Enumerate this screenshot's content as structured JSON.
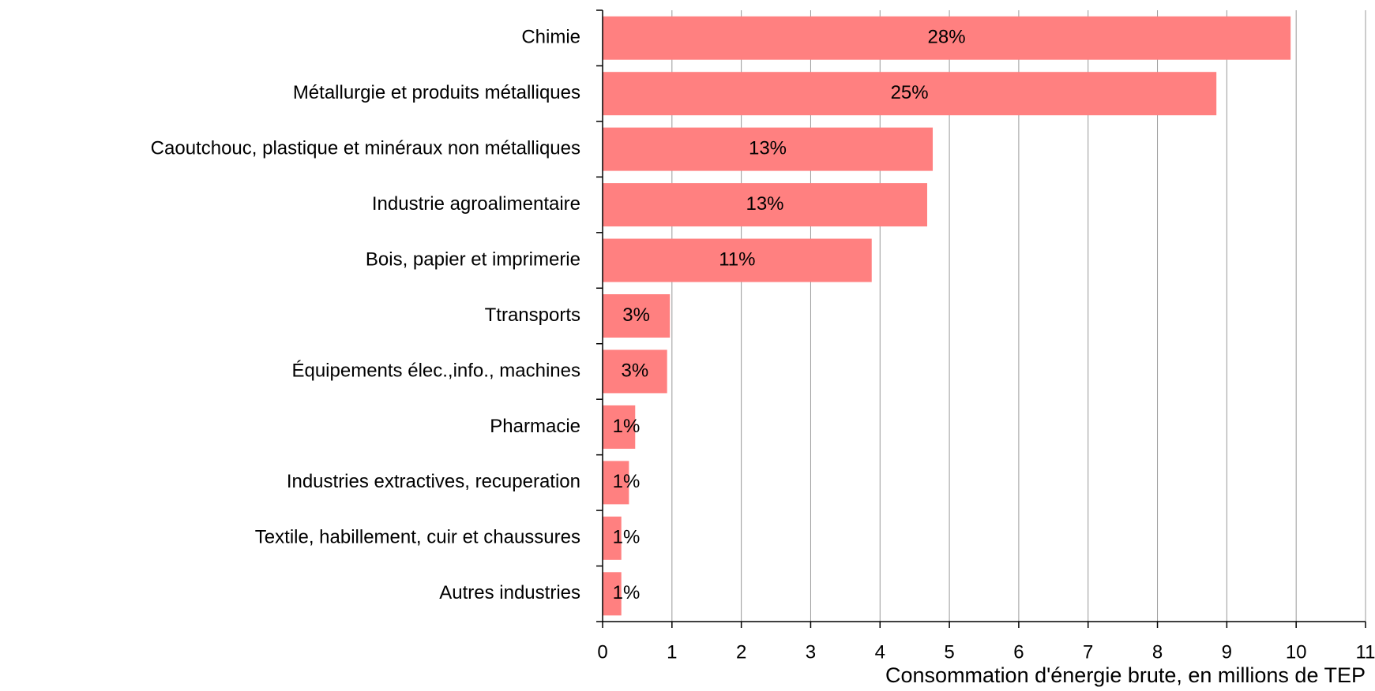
{
  "chart_data": {
    "type": "barh",
    "xlabel": "Consommation d'énergie brute, en millions de TEP",
    "categories": [
      "Chimie",
      "Métallurgie et produits métalliques",
      "Caoutchouc, plastique et minéraux non métalliques",
      "Industrie agroalimentaire",
      "Bois, papier et imprimerie",
      "Ttransports",
      "Équipements élec.,info., machines",
      "Pharmacie",
      "Industries extractives, recuperation",
      "Textile, habillement, cuir et chaussures",
      "Autres industries"
    ],
    "values": [
      9.92,
      8.85,
      4.76,
      4.68,
      3.88,
      0.97,
      0.93,
      0.47,
      0.38,
      0.27,
      0.27
    ],
    "percent_labels": [
      "28%",
      "25%",
      "13%",
      "13%",
      "11%",
      "3%",
      "3%",
      "1%",
      "1%",
      "1%",
      "1%"
    ],
    "color": "#ff8080",
    "xlim": [
      0,
      11
    ],
    "xticks": [
      0,
      1,
      2,
      3,
      4,
      5,
      6,
      7,
      8,
      9,
      10,
      11
    ],
    "grid": true
  }
}
